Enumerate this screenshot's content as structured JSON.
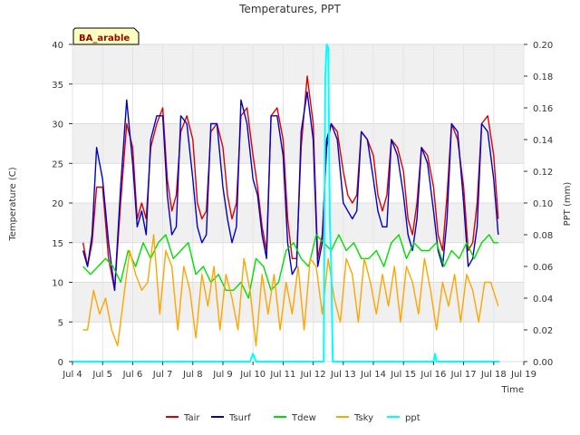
{
  "chart_data": {
    "type": "line",
    "title": "Temperatures, PPT",
    "xlabel": "Time",
    "ylabel": "Temperature (C)",
    "ylabel_right": "PPT (mm)",
    "site_label": "BA_arable",
    "grid": true,
    "legend_position": "bottom-center",
    "xlim": [
      4.0,
      19.0
    ],
    "ylim": [
      0,
      40
    ],
    "ylim_right": [
      0.0,
      0.2
    ],
    "x_ticks": [
      {
        "value": 4,
        "label": "Jul 4"
      },
      {
        "value": 5,
        "label": "Jul 5"
      },
      {
        "value": 6,
        "label": "Jul 6"
      },
      {
        "value": 7,
        "label": "Jul 7"
      },
      {
        "value": 8,
        "label": "Jul 8"
      },
      {
        "value": 9,
        "label": "Jul 9"
      },
      {
        "value": 10,
        "label": "Jul 10"
      },
      {
        "value": 11,
        "label": "Jul 11"
      },
      {
        "value": 12,
        "label": "Jul 12"
      },
      {
        "value": 13,
        "label": "Jul 13"
      },
      {
        "value": 14,
        "label": "Jul 14"
      },
      {
        "value": 15,
        "label": "Jul 15"
      },
      {
        "value": 16,
        "label": "Jul 16"
      },
      {
        "value": 17,
        "label": "Jul 17"
      },
      {
        "value": 18,
        "label": "Jul 18"
      },
      {
        "value": 19,
        "label": "Jul 19"
      }
    ],
    "y_ticks": [
      {
        "value": 0,
        "label": "0"
      },
      {
        "value": 5,
        "label": "5"
      },
      {
        "value": 10,
        "label": "10"
      },
      {
        "value": 15,
        "label": "15"
      },
      {
        "value": 20,
        "label": "20"
      },
      {
        "value": 25,
        "label": "25"
      },
      {
        "value": 30,
        "label": "30"
      },
      {
        "value": 35,
        "label": "35"
      },
      {
        "value": 40,
        "label": "40"
      }
    ],
    "y_ticks_right": [
      {
        "value": 0.0,
        "label": "0.00"
      },
      {
        "value": 0.02,
        "label": "0.02"
      },
      {
        "value": 0.04,
        "label": "0.04"
      },
      {
        "value": 0.06,
        "label": "0.06"
      },
      {
        "value": 0.08,
        "label": "0.08"
      },
      {
        "value": 0.1,
        "label": "0.10"
      },
      {
        "value": 0.12,
        "label": "0.12"
      },
      {
        "value": 0.14,
        "label": "0.14"
      },
      {
        "value": 0.16,
        "label": "0.16"
      },
      {
        "value": 0.18,
        "label": "0.18"
      },
      {
        "value": 0.2,
        "label": "0.20"
      }
    ],
    "series": [
      {
        "name": "Tair",
        "color": "#dd0000",
        "axis": "left",
        "x": [
          4.35,
          4.5,
          4.65,
          4.8,
          5.0,
          5.2,
          5.4,
          5.6,
          5.8,
          6.0,
          6.15,
          6.3,
          6.45,
          6.6,
          6.8,
          7.0,
          7.15,
          7.3,
          7.45,
          7.6,
          7.8,
          8.0,
          8.15,
          8.3,
          8.45,
          8.6,
          8.8,
          9.0,
          9.15,
          9.3,
          9.45,
          9.6,
          9.8,
          10.0,
          10.15,
          10.3,
          10.45,
          10.6,
          10.8,
          11.0,
          11.15,
          11.3,
          11.45,
          11.6,
          11.8,
          12.0,
          12.15,
          12.3,
          12.45,
          12.6,
          12.8,
          13.0,
          13.15,
          13.3,
          13.45,
          13.6,
          13.8,
          14.0,
          14.15,
          14.3,
          14.45,
          14.6,
          14.8,
          15.0,
          15.15,
          15.3,
          15.45,
          15.6,
          15.8,
          16.0,
          16.15,
          16.3,
          16.45,
          16.6,
          16.8,
          17.0,
          17.15,
          17.3,
          17.45,
          17.6,
          17.8,
          18.0,
          18.15
        ],
        "values": [
          15,
          12,
          15,
          22,
          22,
          13,
          9,
          20,
          30,
          27,
          18,
          20,
          18,
          27,
          30,
          32,
          23,
          19,
          21,
          29,
          31,
          28,
          20,
          18,
          19,
          29,
          30,
          27,
          21,
          18,
          20,
          31,
          32,
          26,
          22,
          17,
          14,
          31,
          32,
          28,
          18,
          13,
          13,
          27,
          36,
          30,
          13,
          16,
          27,
          30,
          29,
          24,
          21,
          20,
          21,
          29,
          28,
          26,
          21,
          19,
          21,
          28,
          27,
          24,
          18,
          16,
          20,
          27,
          26,
          22,
          16,
          14,
          21,
          30,
          28,
          22,
          14,
          15,
          20,
          30,
          31,
          26,
          18
        ]
      },
      {
        "name": "Tsurf",
        "color": "#0000cc",
        "axis": "left",
        "x": [
          4.35,
          4.5,
          4.65,
          4.8,
          5.0,
          5.2,
          5.4,
          5.6,
          5.8,
          6.0,
          6.15,
          6.3,
          6.45,
          6.6,
          6.8,
          7.0,
          7.15,
          7.3,
          7.45,
          7.6,
          7.8,
          8.0,
          8.15,
          8.3,
          8.45,
          8.6,
          8.8,
          9.0,
          9.15,
          9.3,
          9.45,
          9.6,
          9.8,
          10.0,
          10.15,
          10.3,
          10.45,
          10.6,
          10.8,
          11.0,
          11.15,
          11.3,
          11.45,
          11.6,
          11.8,
          12.0,
          12.15,
          12.3,
          12.45,
          12.6,
          12.8,
          13.0,
          13.15,
          13.3,
          13.45,
          13.6,
          13.8,
          14.0,
          14.15,
          14.3,
          14.45,
          14.6,
          14.8,
          15.0,
          15.15,
          15.3,
          15.45,
          15.6,
          15.8,
          16.0,
          16.15,
          16.3,
          16.45,
          16.6,
          16.8,
          17.0,
          17.15,
          17.3,
          17.45,
          17.6,
          17.8,
          18.0,
          18.15
        ],
        "values": [
          14,
          12,
          16,
          27,
          23,
          15,
          9,
          22,
          33,
          25,
          17,
          19,
          16,
          28,
          31,
          31,
          21,
          16,
          17,
          31,
          30,
          23,
          17,
          15,
          16,
          30,
          30,
          22,
          18,
          15,
          17,
          33,
          30,
          23,
          21,
          16,
          13,
          31,
          31,
          26,
          15,
          11,
          12,
          29,
          34,
          28,
          12,
          15,
          28,
          30,
          28,
          20,
          19,
          18,
          19,
          29,
          28,
          23,
          19,
          17,
          17,
          28,
          26,
          21,
          16,
          14,
          18,
          27,
          25,
          19,
          14,
          12,
          18,
          30,
          29,
          20,
          12,
          13,
          17,
          30,
          29,
          23,
          16
        ]
      },
      {
        "name": "Tdew",
        "color": "#00dd00",
        "axis": "left",
        "x": [
          4.35,
          4.6,
          4.85,
          5.1,
          5.35,
          5.6,
          5.85,
          6.1,
          6.35,
          6.6,
          6.85,
          7.1,
          7.35,
          7.6,
          7.85,
          8.1,
          8.35,
          8.6,
          8.85,
          9.1,
          9.35,
          9.6,
          9.85,
          10.1,
          10.35,
          10.6,
          10.85,
          11.1,
          11.35,
          11.6,
          11.85,
          12.1,
          12.35,
          12.6,
          12.85,
          13.1,
          13.35,
          13.6,
          13.85,
          14.1,
          14.35,
          14.6,
          14.85,
          15.1,
          15.35,
          15.6,
          15.85,
          16.1,
          16.35,
          16.6,
          16.85,
          17.1,
          17.35,
          17.6,
          17.85,
          18.0,
          18.15
        ],
        "values": [
          12,
          11,
          12,
          13,
          12,
          10,
          14,
          12,
          15,
          13,
          15,
          16,
          13,
          14,
          15,
          11,
          12,
          10,
          11,
          9,
          9,
          10,
          8,
          13,
          12,
          9,
          10,
          14,
          15,
          13,
          12,
          16,
          15,
          14,
          16,
          14,
          15,
          13,
          13,
          14,
          12,
          15,
          16,
          13,
          15,
          14,
          14,
          15,
          12,
          14,
          13,
          15,
          13,
          15,
          16,
          15,
          15
        ]
      },
      {
        "name": "Tsky",
        "color": "#ffa500",
        "axis": "left",
        "x": [
          4.35,
          4.5,
          4.7,
          4.9,
          5.1,
          5.3,
          5.5,
          5.7,
          5.9,
          6.1,
          6.3,
          6.5,
          6.7,
          6.9,
          7.1,
          7.3,
          7.5,
          7.7,
          7.9,
          8.1,
          8.3,
          8.5,
          8.7,
          8.9,
          9.1,
          9.3,
          9.5,
          9.7,
          9.9,
          10.1,
          10.3,
          10.5,
          10.7,
          10.9,
          11.1,
          11.3,
          11.5,
          11.7,
          11.9,
          12.1,
          12.3,
          12.5,
          12.7,
          12.9,
          13.1,
          13.3,
          13.5,
          13.7,
          13.9,
          14.1,
          14.3,
          14.5,
          14.7,
          14.9,
          15.1,
          15.3,
          15.5,
          15.7,
          15.9,
          16.1,
          16.3,
          16.5,
          16.7,
          16.9,
          17.1,
          17.3,
          17.5,
          17.7,
          17.9,
          18.15
        ],
        "values": [
          4,
          4,
          9,
          6,
          8,
          4,
          2,
          8,
          14,
          11,
          9,
          10,
          16,
          6,
          14,
          12,
          4,
          12,
          9,
          3,
          11,
          7,
          12,
          4,
          11,
          8,
          4,
          13,
          9,
          2,
          11,
          6,
          11,
          4,
          10,
          6,
          12,
          4,
          13,
          12,
          6,
          13,
          8,
          5,
          13,
          11,
          5,
          13,
          10,
          6,
          11,
          7,
          12,
          5,
          12,
          10,
          6,
          13,
          9,
          4,
          10,
          7,
          11,
          5,
          11,
          9,
          5,
          10,
          10,
          7
        ]
      },
      {
        "name": "ppt",
        "color": "#00ffff",
        "axis": "right",
        "x": [
          4.0,
          9.9,
          10.0,
          10.1,
          12.35,
          12.4,
          12.45,
          12.5,
          12.55,
          12.6,
          12.65,
          16.0,
          16.05,
          16.1,
          18.2
        ],
        "values": [
          0.0,
          0.0,
          0.005,
          0.0,
          0.0,
          0.18,
          0.2,
          0.198,
          0.09,
          0.06,
          0.0,
          0.0,
          0.005,
          0.0,
          0.0
        ]
      }
    ]
  }
}
